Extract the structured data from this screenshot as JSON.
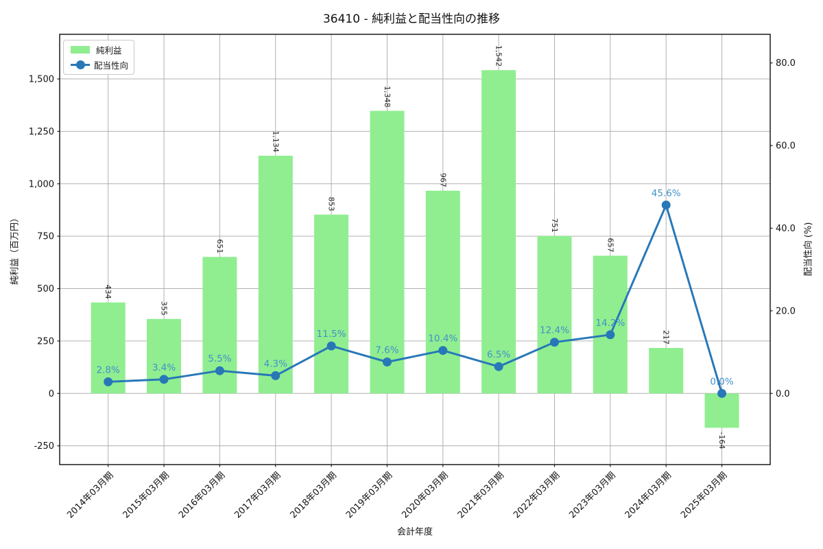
{
  "chart": {
    "title": "36410 - 純利益と配当性向の推移",
    "xlabel": "会計年度",
    "ylabel_left": "純利益（百万円）",
    "ylabel_right": "配当性向 (%)",
    "legend": {
      "bar_label": "純利益",
      "line_label": "配当性向"
    },
    "colors": {
      "bar": "#90ee90",
      "line": "#2878b8",
      "percent_label": "#4191c9",
      "grid": "#b0b0b0",
      "axis": "#1a1a1a",
      "bar_value_label": "#262626"
    }
  },
  "chart_data": {
    "type": "bar",
    "title": "36410 - 純利益と配当性向の推移",
    "xlabel": "会計年度",
    "categories": [
      "2014年03月期",
      "2015年03月期",
      "2016年03月期",
      "2017年03月期",
      "2018年03月期",
      "2019年03月期",
      "2020年03月期",
      "2021年03月期",
      "2022年03月期",
      "2023年03月期",
      "2024年03月期",
      "2025年03月期"
    ],
    "series": [
      {
        "name": "純利益",
        "type": "bar",
        "axis": "left",
        "values": [
          434,
          355,
          651,
          1134,
          853,
          1348,
          967,
          1542,
          751,
          657,
          217,
          -164
        ],
        "labels": [
          "434",
          "355",
          "651",
          "1,134",
          "853",
          "1,348",
          "967",
          "1,542",
          "751",
          "657",
          "217",
          "-164"
        ]
      },
      {
        "name": "配当性向",
        "type": "line",
        "axis": "right",
        "values": [
          2.8,
          3.4,
          5.5,
          4.3,
          11.5,
          7.6,
          10.4,
          6.5,
          12.4,
          14.2,
          45.6,
          0.0
        ],
        "labels": [
          "2.8%",
          "3.4%",
          "5.5%",
          "4.3%",
          "11.5%",
          "7.6%",
          "10.4%",
          "6.5%",
          "12.4%",
          "14.2%",
          "45.6%",
          "0.0%"
        ]
      }
    ],
    "left_axis": {
      "label": "純利益（百万円）",
      "tick_values": [
        -250,
        0,
        250,
        500,
        750,
        1000,
        1250,
        1500
      ],
      "tick_labels": [
        "-250",
        "0",
        "250",
        "500",
        "750",
        "1,000",
        "1,250",
        "1,500"
      ],
      "range": [
        -339,
        1713
      ]
    },
    "right_axis": {
      "label": "配当性向 (%)",
      "tick_values": [
        0,
        20,
        40,
        60,
        80
      ],
      "tick_labels": [
        "0.0",
        "20.0",
        "40.0",
        "60.0",
        "80.0"
      ],
      "range": [
        -17.2,
        86.9
      ]
    },
    "grid": true,
    "legend_position": "upper left",
    "x_tick_rotation_deg": 45
  }
}
